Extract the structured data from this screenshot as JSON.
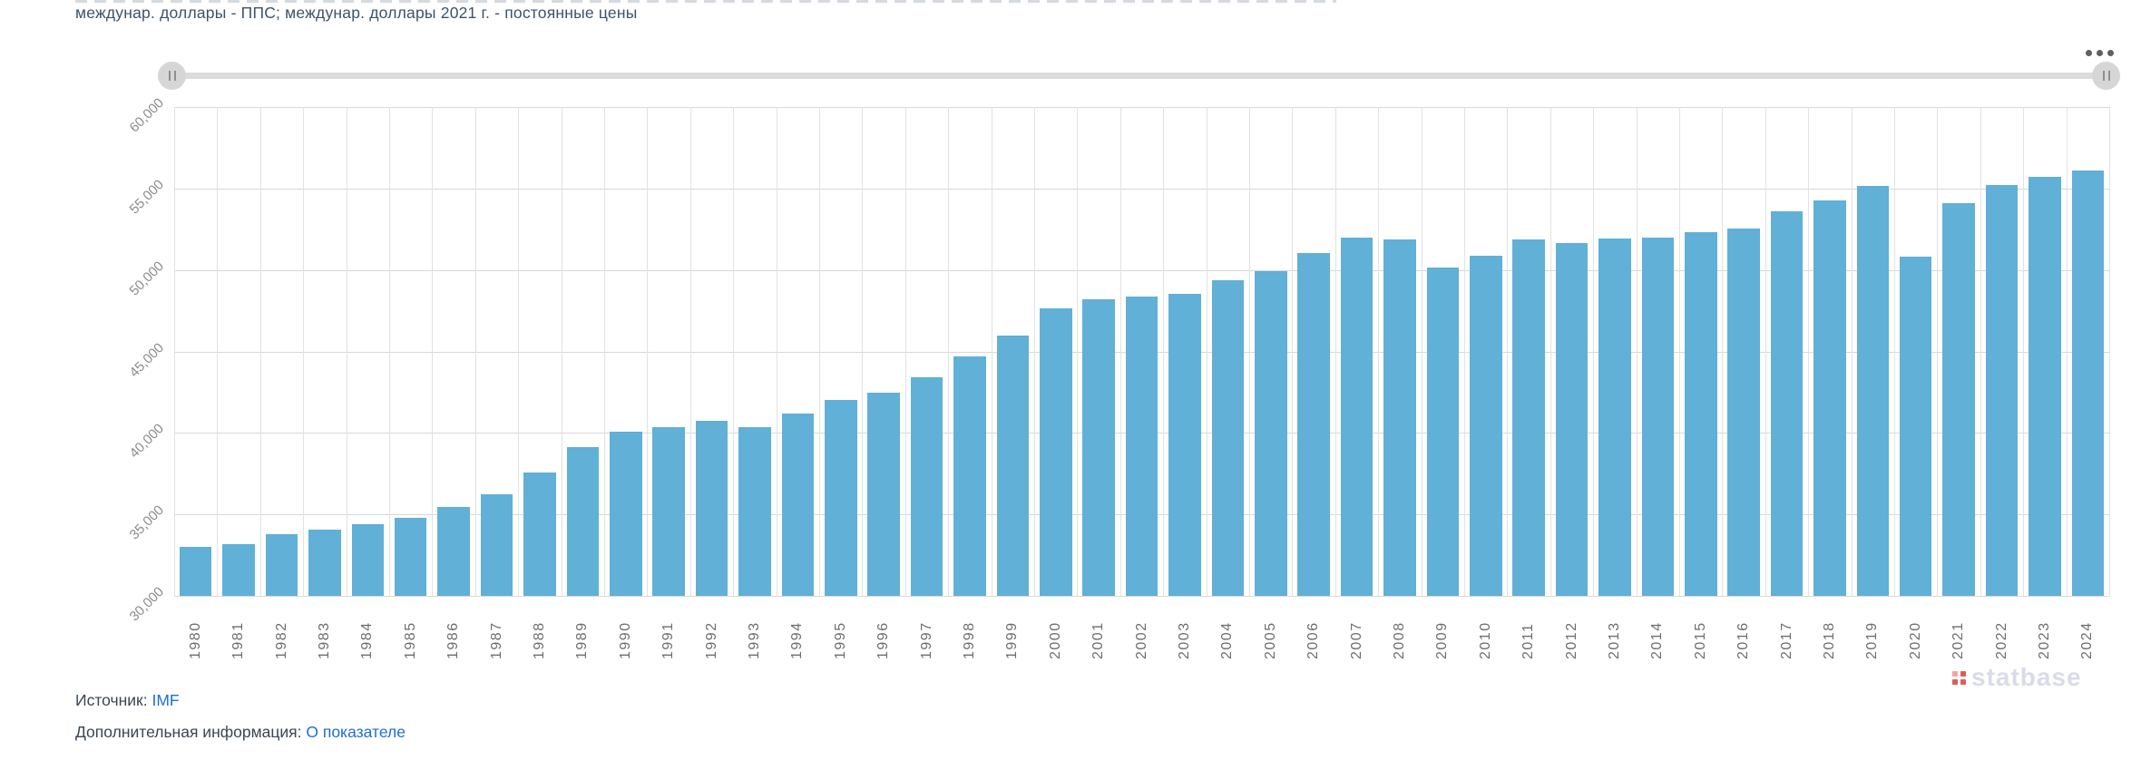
{
  "header": {
    "subtitle": "междунар. доллары - ППС; междунар. доллары 2021 г. - постоянные цены"
  },
  "toolbar": {
    "more_options_icon": "ellipsis-menu"
  },
  "slider": {
    "left_handle_icon": "drag-handle",
    "right_handle_icon": "drag-handle"
  },
  "watermark": {
    "text": "statbase",
    "icon": "statbase-dots-logo",
    "text_color": "#dadbe9",
    "dot_color": "#e05c5c"
  },
  "footer": {
    "source_label": "Источник:",
    "source_link": "IMF",
    "info_label": "Дополнительная информация:",
    "info_link": "О показателе",
    "link_color": "#1d6fd6"
  },
  "chart_data": {
    "type": "bar",
    "title": "",
    "xlabel": "",
    "ylabel": "междунар. доллары - ППС, постоянные цены 2021 г.",
    "categories": [
      "1980",
      "1981",
      "1982",
      "1983",
      "1984",
      "1985",
      "1986",
      "1987",
      "1988",
      "1989",
      "1990",
      "1991",
      "1992",
      "1993",
      "1994",
      "1995",
      "1996",
      "1997",
      "1998",
      "1999",
      "2000",
      "2001",
      "2002",
      "2003",
      "2004",
      "2005",
      "2006",
      "2007",
      "2008",
      "2009",
      "2010",
      "2011",
      "2012",
      "2013",
      "2014",
      "2015",
      "2016",
      "2017",
      "2018",
      "2019",
      "2020",
      "2021",
      "2022",
      "2023",
      "2024"
    ],
    "values": [
      33000,
      33200,
      33800,
      34050,
      34400,
      34800,
      35450,
      36250,
      37550,
      39150,
      40050,
      40350,
      40750,
      40350,
      41200,
      42050,
      42450,
      43400,
      44700,
      46000,
      47650,
      48200,
      48350,
      48550,
      49350,
      49950,
      51050,
      52000,
      51850,
      50150,
      50850,
      51900,
      51650,
      51950,
      52000,
      52300,
      52550,
      53600,
      54250,
      55150,
      50800,
      54100,
      55200,
      55700,
      56100
    ],
    "ylim": [
      30000,
      60000
    ],
    "ytick_step": 5000,
    "ytick_labels": [
      "30,000",
      "35,000",
      "40,000",
      "45,000",
      "50,000",
      "55,000",
      "60,000"
    ],
    "grid": true,
    "legend": false,
    "bar_color": "#60b0d7"
  }
}
